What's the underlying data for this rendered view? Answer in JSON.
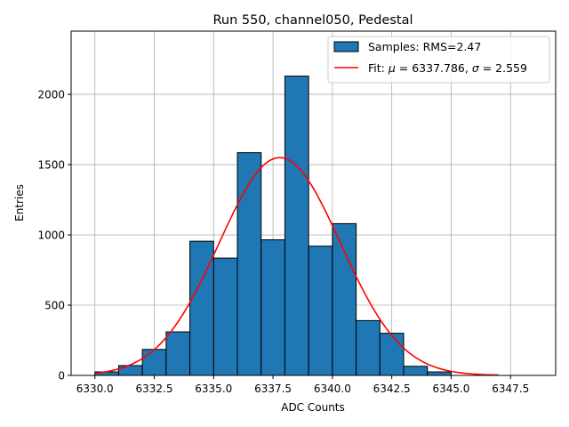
{
  "chart_data": {
    "type": "bar",
    "title": "Run 550, channel050, Pedestal",
    "xlabel": "ADC Counts",
    "ylabel": "Entries",
    "xlim": [
      6329.0,
      6349.4
    ],
    "ylim": [
      0,
      2450
    ],
    "grid": true,
    "legend_position": "top-right",
    "histogram": {
      "name": "Samples: RMS=2.47",
      "color": "#1f77b4",
      "bin_edges": [
        6330.0,
        6331.0,
        6332.0,
        6333.0,
        6334.0,
        6335.0,
        6336.0,
        6337.0,
        6338.0,
        6339.0,
        6340.0,
        6341.0,
        6342.0,
        6343.0,
        6344.0,
        6345.0,
        6346.0,
        6347.0,
        6348.0,
        6349.0
      ],
      "counts": [
        25,
        70,
        185,
        310,
        955,
        835,
        1585,
        965,
        2130,
        920,
        1080,
        390,
        300,
        65,
        25,
        0,
        0,
        0,
        0
      ]
    },
    "fit": {
      "name": "Fit: $\\mu$ = 6337.786, $\\sigma$ = 2.559",
      "legend_label_parts": [
        "Fit: ",
        "μ",
        " = 6337.786, ",
        "σ",
        " = 2.559"
      ],
      "color": "#ff0000",
      "mu": 6337.786,
      "sigma": 2.559,
      "amplitude": 1550,
      "x_range": [
        6330.0,
        6347.0
      ]
    },
    "x_ticks": [
      6330.0,
      6332.5,
      6335.0,
      6337.5,
      6340.0,
      6342.5,
      6345.0,
      6347.5
    ],
    "x_tick_labels": [
      "6330.0",
      "6332.5",
      "6335.0",
      "6337.5",
      "6340.0",
      "6342.5",
      "6345.0",
      "6347.5"
    ],
    "y_ticks": [
      0,
      500,
      1000,
      1500,
      2000
    ],
    "y_tick_labels": [
      "0",
      "500",
      "1000",
      "1500",
      "2000"
    ]
  }
}
